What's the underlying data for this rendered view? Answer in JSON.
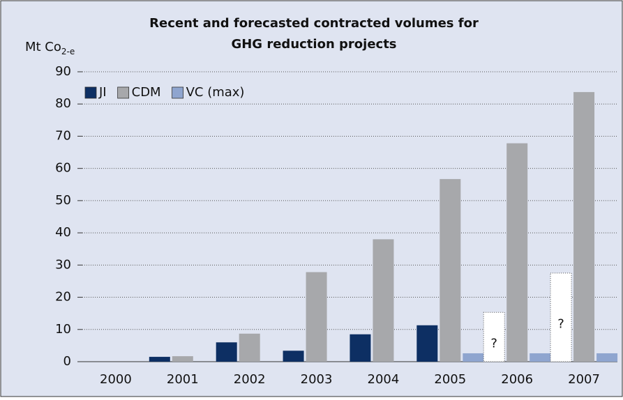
{
  "chart_data": {
    "type": "bar",
    "title": [
      "Recent and forecasted contracted volumes for",
      "GHG reduction projects"
    ],
    "y_label": "Mt Co",
    "y_label_sub": "2-e",
    "categories": [
      "2000",
      "2001",
      "2002",
      "2003",
      "2004",
      "2005",
      "2006",
      "2007"
    ],
    "series": [
      {
        "name": "JI",
        "color": "#0d2f63",
        "values": [
          0,
          1.5,
          6,
          3.4,
          8.5,
          11.3,
          15.3,
          27.5
        ],
        "uncertain": [
          false,
          false,
          false,
          false,
          false,
          false,
          true,
          true
        ]
      },
      {
        "name": "CDM",
        "color": "#a7a8ab",
        "values": [
          0,
          1.7,
          8.7,
          27.8,
          38,
          56.7,
          67.8,
          83.7
        ]
      },
      {
        "name": "VC (max)",
        "color": "#8fa5cf",
        "values": [
          0,
          0,
          0,
          0,
          0,
          2.6,
          2.6,
          2.6
        ]
      }
    ],
    "uncertain_label": "?",
    "ylim": [
      0,
      90
    ],
    "yticks": [
      0,
      10,
      20,
      30,
      40,
      50,
      60,
      70,
      80,
      90
    ],
    "grid": true,
    "legend": "top-left",
    "background": "#dfe4f1"
  }
}
